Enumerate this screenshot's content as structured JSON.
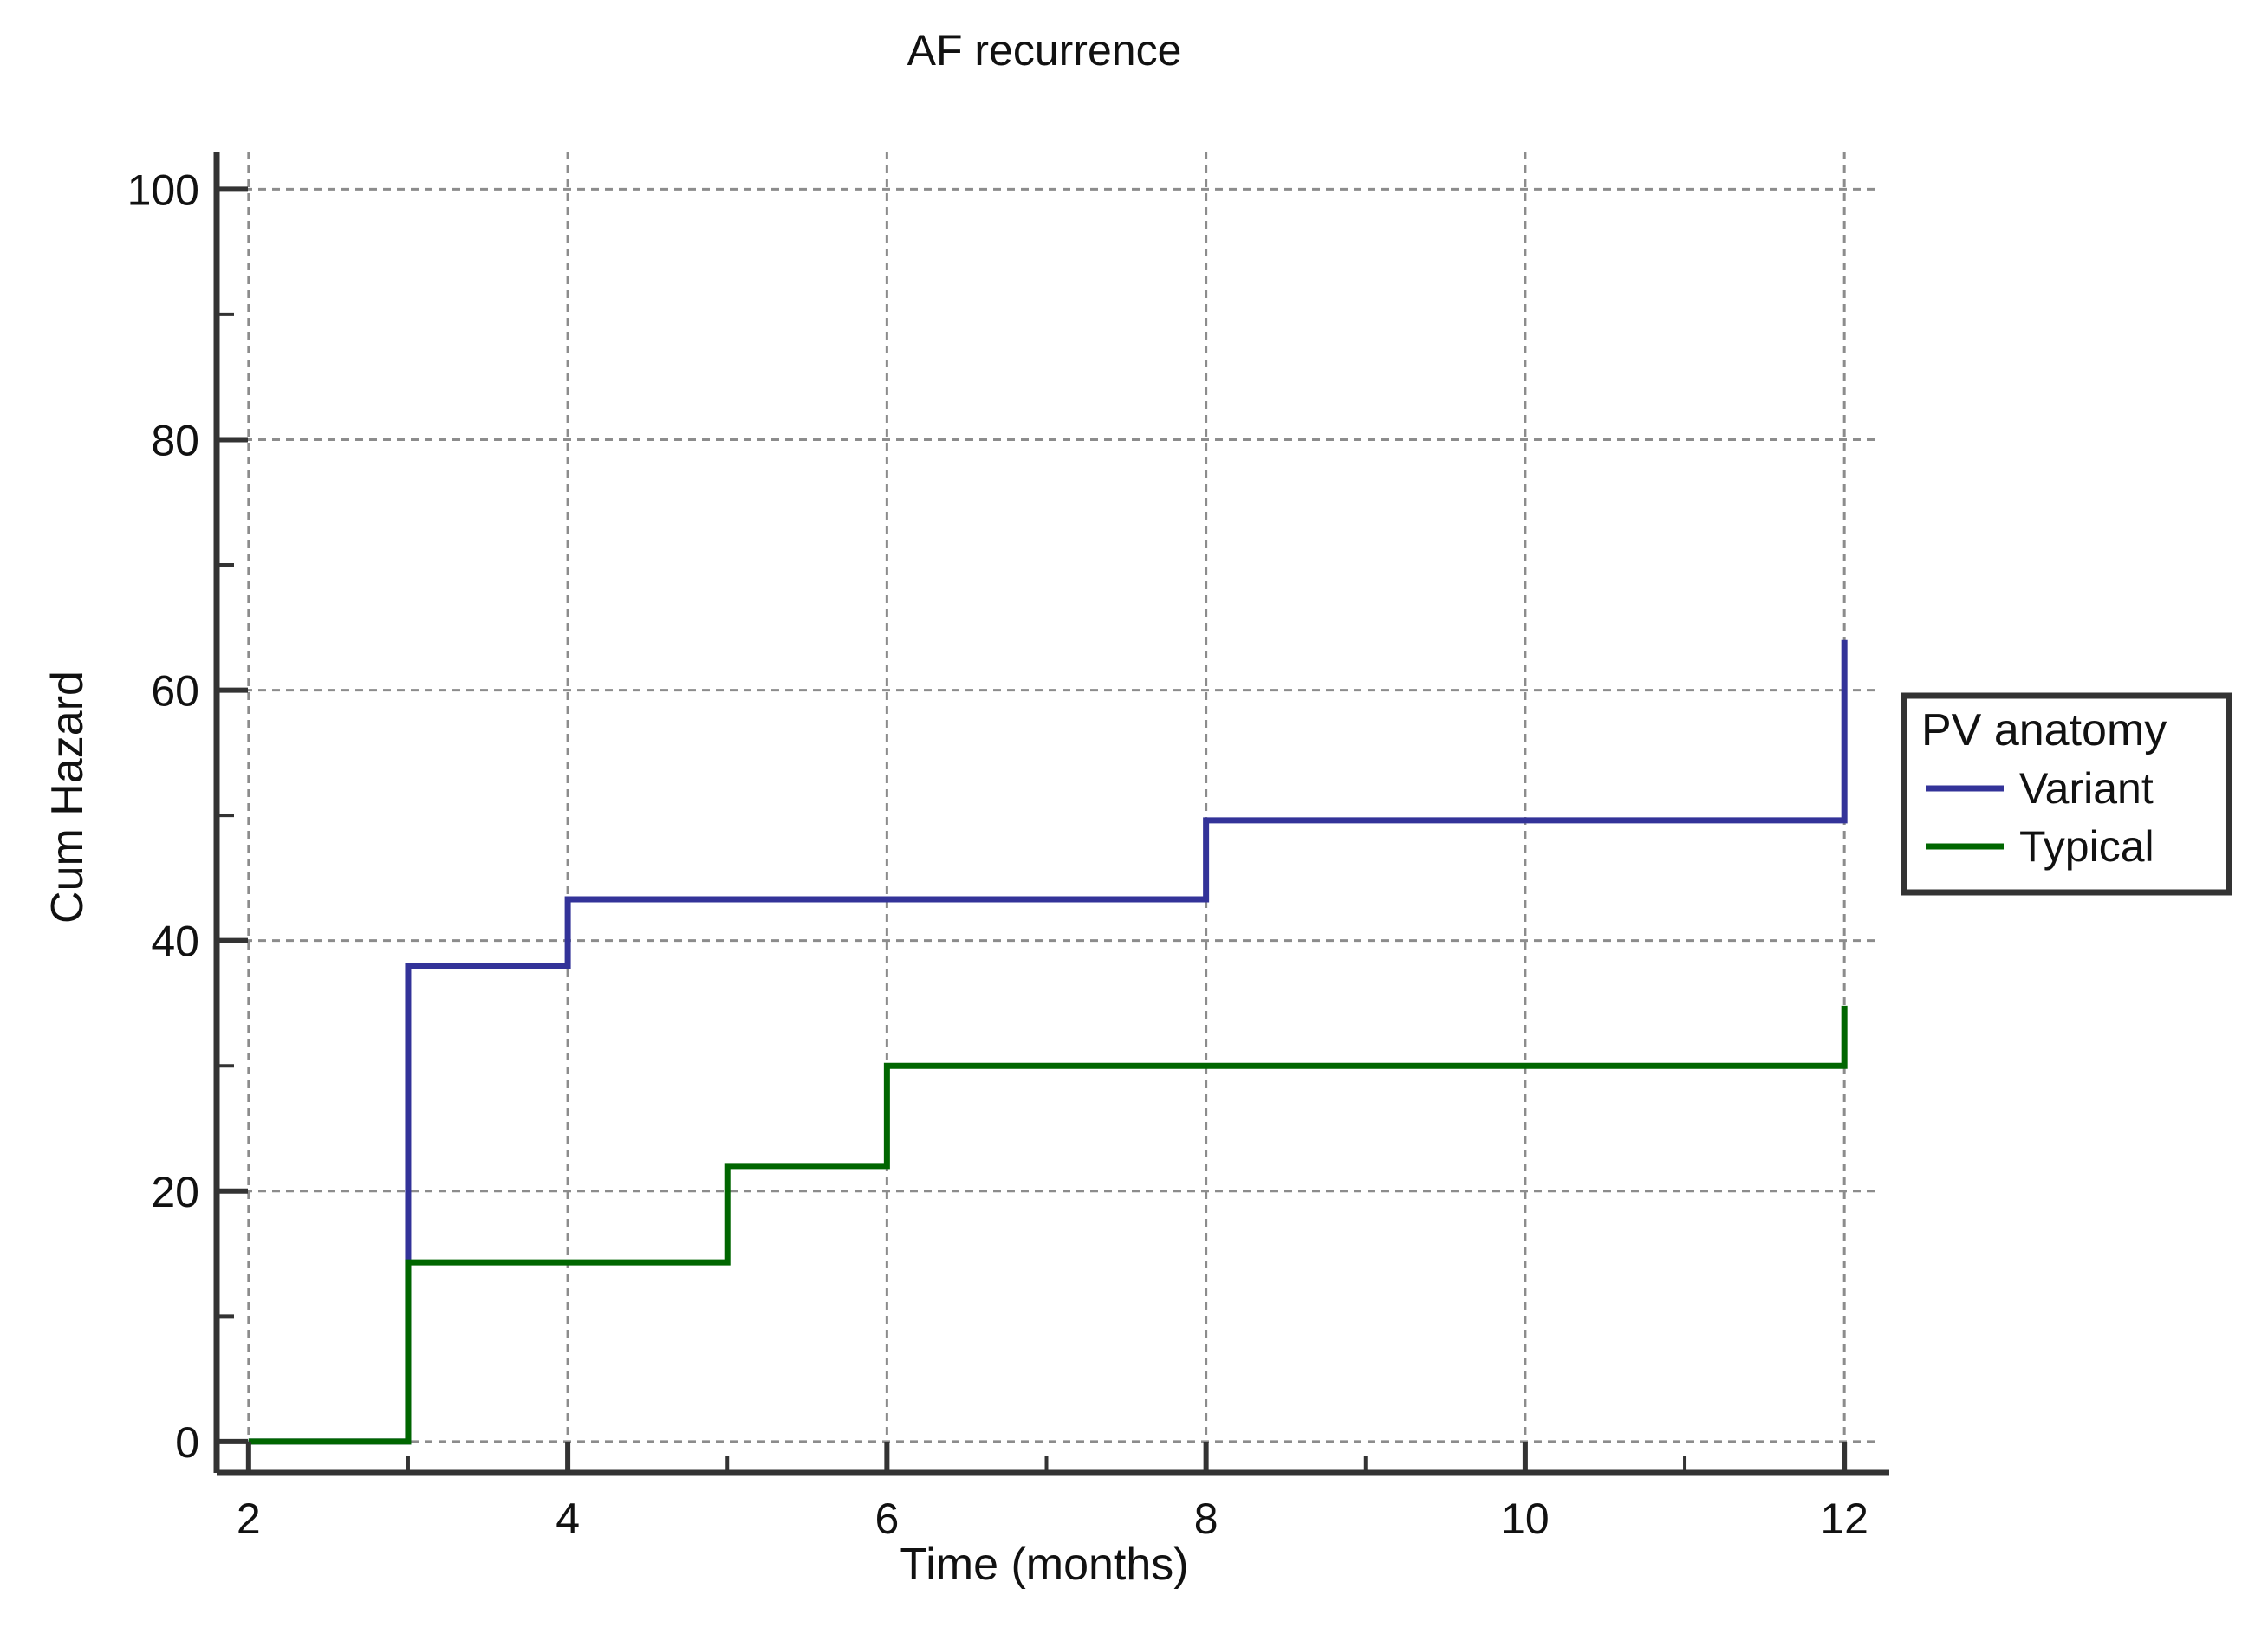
{
  "chart_data": {
    "type": "line",
    "step": true,
    "title": "AF recurrence",
    "xlabel": "Time (months)",
    "ylabel": "Cum Hazard",
    "xlim": [
      1.8,
      12.2
    ],
    "ylim": [
      -2.5,
      103
    ],
    "x_ticks": [
      2,
      4,
      6,
      8,
      10,
      12
    ],
    "x_minor_ticks": [
      3,
      5,
      7,
      9,
      11
    ],
    "y_ticks": [
      0,
      20,
      40,
      60,
      80,
      100
    ],
    "y_minor_ticks": [
      10,
      30,
      50,
      70,
      90
    ],
    "grid": true,
    "legend": {
      "title": "PV anatomy",
      "placement": "right"
    },
    "series": [
      {
        "name": "Variant",
        "color": "#333399",
        "x": [
          2,
          3,
          4,
          8,
          12,
          12
        ],
        "y": [
          0,
          38,
          43.3,
          49.6,
          49.6,
          64
        ]
      },
      {
        "name": "Typical",
        "color": "#006600",
        "x": [
          2,
          3,
          5,
          6,
          12,
          12
        ],
        "y": [
          0,
          14.3,
          22,
          30,
          30,
          34.8
        ]
      }
    ]
  }
}
